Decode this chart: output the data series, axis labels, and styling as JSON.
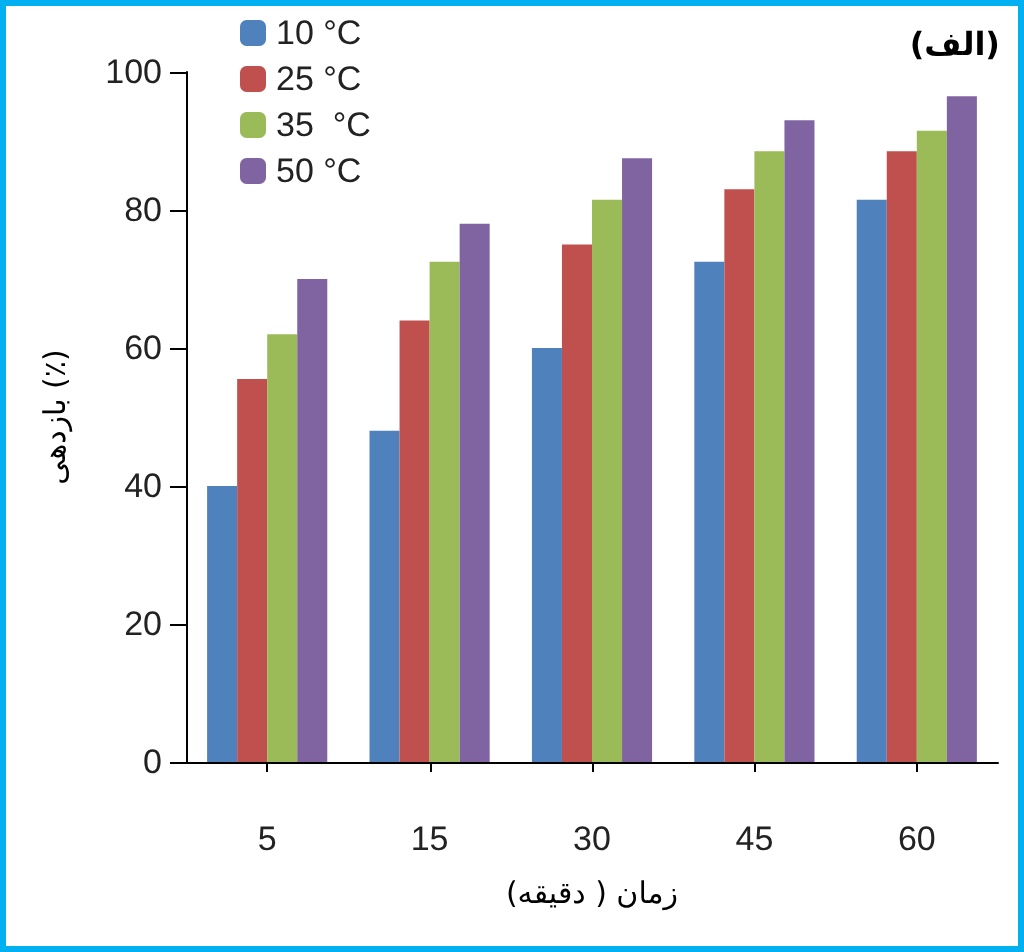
{
  "chart_data": {
    "type": "bar",
    "title": "(الف)",
    "xlabel": "زمان ( دقیقه)",
    "ylabel": "بازدهی (٪)",
    "categories": [
      "5",
      "15",
      "30",
      "45",
      "60"
    ],
    "series": [
      {
        "name": "10 °C",
        "color": "#4f81bd",
        "values": [
          40,
          48,
          60,
          72.5,
          81.5
        ]
      },
      {
        "name": "25 °C",
        "color": "#c0504d",
        "values": [
          55.5,
          64,
          75,
          83,
          88.5
        ]
      },
      {
        "name": "35  °C",
        "color": "#9bbb59",
        "values": [
          62,
          72.5,
          81.5,
          88.5,
          91.5
        ]
      },
      {
        "name": "50 °C",
        "color": "#8064a2",
        "values": [
          70,
          78,
          87.5,
          93,
          96.5
        ]
      }
    ],
    "ylim": [
      0,
      100
    ],
    "yticks": [
      0,
      20,
      40,
      60,
      80,
      100
    ],
    "grid": false,
    "legend": "top left"
  }
}
